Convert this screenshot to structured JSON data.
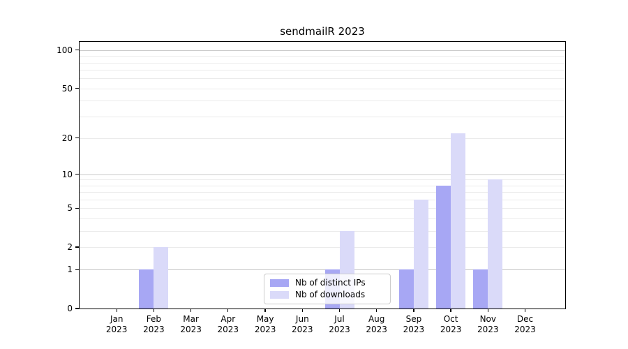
{
  "chart_data": {
    "type": "bar",
    "title": "sendmailR 2023",
    "categories": [
      "Jan",
      "Feb",
      "Mar",
      "Apr",
      "May",
      "Jun",
      "Jul",
      "Aug",
      "Sep",
      "Oct",
      "Nov",
      "Dec"
    ],
    "category_year": "2023",
    "series": [
      {
        "name": "Nb of distinct IPs",
        "color": "#a7a7f4",
        "values": [
          0,
          1,
          0,
          0,
          0,
          0,
          1,
          0,
          1,
          8,
          1,
          0
        ]
      },
      {
        "name": "Nb of downloads",
        "color": "#dadaf9",
        "values": [
          0,
          2,
          0,
          0,
          0,
          0,
          3,
          0,
          6,
          22,
          9,
          0
        ]
      }
    ],
    "xlabel": "",
    "ylabel": "",
    "yscale": "log1p",
    "ylim": [
      0,
      116
    ],
    "y_ticks": [
      0,
      1,
      2,
      5,
      10,
      20,
      50,
      100
    ],
    "grid": {
      "major_gridlines": [
        1,
        10,
        100
      ],
      "minor_gridlines": [
        2,
        3,
        4,
        5,
        6,
        7,
        8,
        9,
        20,
        30,
        40,
        50,
        60,
        70,
        80,
        90
      ],
      "major_color": "#c9c9c9",
      "minor_color": "#ebebeb"
    },
    "legend_position": "lower center"
  },
  "colors": {
    "axis": "#000000",
    "background": "#ffffff"
  }
}
